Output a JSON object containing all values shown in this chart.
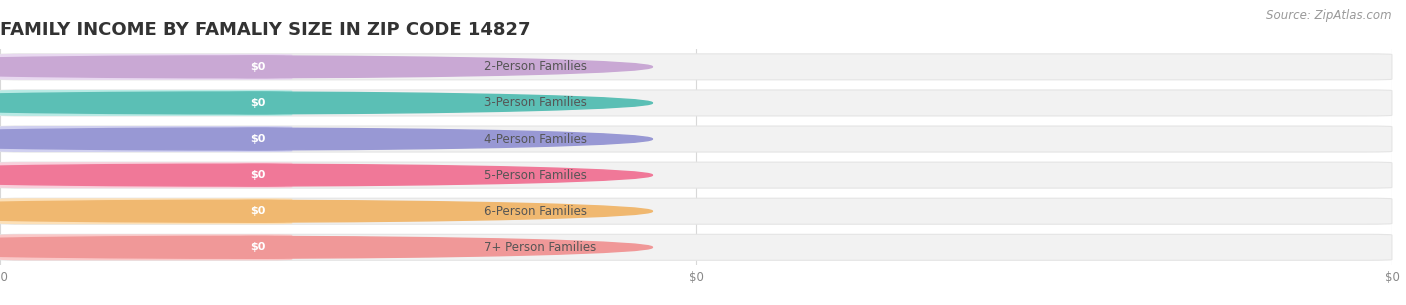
{
  "title": "FAMILY INCOME BY FAMALIY SIZE IN ZIP CODE 14827",
  "source": "Source: ZipAtlas.com",
  "categories": [
    "2-Person Families",
    "3-Person Families",
    "4-Person Families",
    "5-Person Families",
    "6-Person Families",
    "7+ Person Families"
  ],
  "values": [
    0,
    0,
    0,
    0,
    0,
    0
  ],
  "circle_colors": [
    "#c9a8d4",
    "#5bbfb5",
    "#9898d4",
    "#f07898",
    "#f0b870",
    "#f09898"
  ],
  "badge_bg_colors": [
    "#e8d8f0",
    "#b8eae4",
    "#d0d0f0",
    "#f8d0dc",
    "#fce0b8",
    "#fac8c8"
  ],
  "value_pill_colors": [
    "#c9a8d4",
    "#5bbfb5",
    "#9898d4",
    "#f07898",
    "#f0b870",
    "#f09898"
  ],
  "bar_bg_color": "#f2f2f2",
  "bar_border_color": "#e4e4e4",
  "value_label": "$0",
  "bg_color": "#ffffff",
  "title_fontsize": 13,
  "label_fontsize": 8.5,
  "source_fontsize": 8.5,
  "x_tick_labels": [
    "$0",
    "$0",
    "$0"
  ],
  "x_tick_positions": [
    0.0,
    0.5,
    1.0
  ],
  "grid_color": "#d8d8d8",
  "text_color": "#555555"
}
